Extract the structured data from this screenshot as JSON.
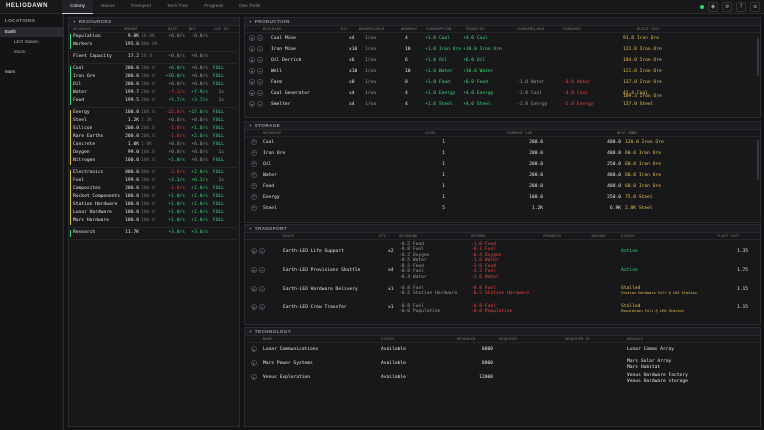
{
  "app": {
    "title": "HELIODAWN"
  },
  "nav": {
    "tabs": [
      "Colony",
      "Nexus",
      "Transport",
      "Tech Tree",
      "Progress",
      "Dev Tools"
    ]
  },
  "locations": {
    "heading": "LOCATIONS",
    "items": [
      {
        "label": "Earth",
        "selected": true,
        "sub": false
      },
      {
        "label": "LEO Station",
        "selected": false,
        "sub": true
      },
      {
        "label": "Moon",
        "selected": false,
        "sub": true
      },
      {
        "label": "Mars",
        "selected": false,
        "sub": false
      }
    ]
  },
  "resources": {
    "heading": "RESOURCES",
    "columns": [
      "RESOURCE",
      "AMOUNT",
      "RATE",
      "NET",
      "CAP IN"
    ],
    "groups": [
      {
        "accent": "#3ddc7a",
        "rows": [
          {
            "name": "Population",
            "amount": "9.8K",
            "cap": "10.0K",
            "rate": "+0.0/s",
            "net": "-0.0/s",
            "capin": ""
          },
          {
            "name": "Workers",
            "amount": "195.0",
            "cap": "800.0K",
            "rate": "",
            "net": "",
            "capin": ""
          }
        ]
      },
      {
        "accent": "",
        "rows": [
          {
            "name": "Fleet Capacity",
            "amount": "17.2",
            "cap": "50.0",
            "rate": "+0.0/s",
            "net": "+0.0/s",
            "capin": ""
          }
        ]
      },
      {
        "accent": "#3ddc7a",
        "rows": [
          {
            "name": "Coal",
            "amount": "200.0",
            "cap": "200.0",
            "rate": "+6.0/s",
            "net": "+0.0/s",
            "capin": "FULL"
          },
          {
            "name": "Iron Ore",
            "amount": "200.0",
            "cap": "200.0",
            "rate": "+10.0/s",
            "net": "+0.0/s",
            "capin": "FULL"
          },
          {
            "name": "Oil",
            "amount": "200.0",
            "cap": "200.0",
            "rate": "+0.0/s",
            "net": "+0.0/s",
            "capin": "FULL"
          },
          {
            "name": "Water",
            "amount": "199.7",
            "cap": "200.0",
            "rate": "-7.1/s",
            "net": "+7.9/s",
            "capin": "1s"
          },
          {
            "name": "Food",
            "amount": "199.5",
            "cap": "200.0",
            "rate": "+5.7/s",
            "net": "+3.7/s",
            "capin": "1s"
          }
        ]
      },
      {
        "accent": "#e6c24a",
        "rows": [
          {
            "name": "Energy",
            "amount": "100.0",
            "cap": "100.0",
            "rate": "-22.0/s",
            "net": "+17.0/s",
            "capin": "FULL"
          },
          {
            "name": "Steel",
            "amount": "1.2K",
            "cap": "1.2K",
            "rate": "+0.0/s",
            "net": "+0.0/s",
            "capin": "FULL"
          },
          {
            "name": "Silicon",
            "amount": "200.0",
            "cap": "200.0",
            "rate": "-1.0/s",
            "net": "+1.0/s",
            "capin": "FULL"
          },
          {
            "name": "Rare Earths",
            "amount": "200.0",
            "cap": "200.0",
            "rate": "-1.0/s",
            "net": "+2.0/s",
            "capin": "FULL"
          },
          {
            "name": "Concrete",
            "amount": "1.0K",
            "cap": "1.0K",
            "rate": "+0.0/s",
            "net": "+0.0/s",
            "capin": "FULL"
          },
          {
            "name": "Oxygen",
            "amount": "99.0",
            "cap": "100.0",
            "rate": "+0.0/s",
            "net": "+0.0/s",
            "capin": "1s"
          },
          {
            "name": "Nitrogen",
            "amount": "100.0",
            "cap": "100.0",
            "rate": "+1.0/s",
            "net": "+0.0/s",
            "capin": "FULL"
          }
        ]
      },
      {
        "accent": "#e6c24a",
        "rows": [
          {
            "name": "Electronics",
            "amount": "800.0",
            "cap": "800.0",
            "rate": "-2.0/s",
            "net": "+2.0/s",
            "capin": "FULL"
          },
          {
            "name": "Fuel",
            "amount": "199.0",
            "cap": "200.0",
            "rate": "+3.3/s",
            "net": "+0.3/s",
            "capin": "1s"
          },
          {
            "name": "Composites",
            "amount": "200.0",
            "cap": "200.0",
            "rate": "-1.0/s",
            "net": "+1.0/s",
            "capin": "FULL"
          },
          {
            "name": "Rocket Components",
            "amount": "100.0",
            "cap": "100.0",
            "rate": "+1.0/s",
            "net": "+1.0/s",
            "capin": "FULL"
          },
          {
            "name": "Station Hardware",
            "amount": "100.0",
            "cap": "100.0",
            "rate": "+1.0/s",
            "net": "+1.0/s",
            "capin": "FULL"
          },
          {
            "name": "Lunar Hardware",
            "amount": "100.0",
            "cap": "100.0",
            "rate": "+1.0/s",
            "net": "+1.0/s",
            "capin": "FULL"
          },
          {
            "name": "Mars Hardware",
            "amount": "100.0",
            "cap": "100.0",
            "rate": "+1.0/s",
            "net": "+1.0/s",
            "capin": "FULL"
          }
        ]
      },
      {
        "accent": "#3ddc7a",
        "rows": [
          {
            "name": "Research",
            "amount": "11.7K",
            "cap": "",
            "rate": "+3.0/s",
            "net": "+3.0/s",
            "capin": ""
          }
        ]
      }
    ]
  },
  "production": {
    "heading": "PRODUCTION",
    "columns": [
      "BUILDING",
      "QTY",
      "WORKERS/BLD",
      "WORKERS",
      "CONSUMPTION",
      "PRODUCES",
      "CONSUMES/BLD",
      "CONSUMES",
      "BUILD COST"
    ],
    "rows": [
      {
        "name": "Coal Mine",
        "qty": "x4",
        "rate": "1/ea",
        "workers": "4",
        "cons": "+1.0 Coal",
        "prod": "+4.0 Coal",
        "cb": "",
        "cs": "",
        "cost": "91.8 Iron Ore"
      },
      {
        "name": "Iron Mine",
        "qty": "x10",
        "rate": "1/ea",
        "workers": "10",
        "cons": "+1.0 Iron Ore",
        "prod": "+10.0 Iron Ore",
        "cb": "",
        "cs": "",
        "cost": "121.0 Iron Ore"
      },
      {
        "name": "Oil Derrick",
        "qty": "x6",
        "rate": "1/ea",
        "workers": "6",
        "cons": "+1.0 Oil",
        "prod": "+6.0 Oil",
        "cb": "",
        "cs": "",
        "cost": "104.0 Iron Ore"
      },
      {
        "name": "Well",
        "qty": "x10",
        "rate": "1/ea",
        "workers": "10",
        "cons": "+1.0 Water",
        "prod": "+10.0 Water",
        "cb": "",
        "cs": "",
        "cost": "121.0 Iron Ore"
      },
      {
        "name": "Farm",
        "qty": "x8",
        "rate": "1/ea",
        "workers": "8",
        "cons": "+1.0 Food",
        "prod": "+8.0 Food",
        "cb": "-1.0 Water",
        "cs": "-8.0 Water",
        "cost": "137.0 Iron Ore"
      },
      {
        "name": "Coal Generator",
        "qty": "x4",
        "rate": "1/ea",
        "workers": "4",
        "cons": "+1.0 Energy",
        "prod": "+4.0 Energy",
        "cb": "-1.0 Coal",
        "cs": "-4.0 Coal",
        "cost": "42.4 Coal"
      },
      {
        "name": "Smelter",
        "qty": "x4",
        "rate": "1/ea",
        "workers": "4",
        "cons": "+1.0 Steel",
        "prod": "+4.0 Steel",
        "cb": "-1.0 Energy",
        "cs": "-5.0 Energy",
        "cost": "137.0 Steel"
      }
    ],
    "extra_cost": "109.3 Iron Ore"
  },
  "storage": {
    "heading": "STORAGE",
    "columns": [
      "RESOURCE",
      "LEVEL",
      "CURRENT CAP",
      "NEXT CAP",
      "COST"
    ],
    "rows": [
      {
        "name": "Coal",
        "level": "1",
        "cur": "200.0",
        "next": "400.0",
        "cost": "120.0 Iron Ore"
      },
      {
        "name": "Iron Ore",
        "level": "1",
        "cur": "200.0",
        "next": "400.0",
        "cost": "60.0 Iron Ore"
      },
      {
        "name": "Oil",
        "level": "1",
        "cur": "200.0",
        "next": "250.0",
        "cost": "60.0 Iron Ore"
      },
      {
        "name": "Water",
        "level": "1",
        "cur": "200.0",
        "next": "400.0",
        "cost": "60.0 Iron Ore"
      },
      {
        "name": "Food",
        "level": "1",
        "cur": "200.0",
        "next": "400.0",
        "cost": "60.0 Iron Ore"
      },
      {
        "name": "Energy",
        "level": "1",
        "cur": "100.0",
        "next": "250.0",
        "cost": "75.0 Steel"
      },
      {
        "name": "Steel",
        "level": "5",
        "cur": "1.2K",
        "next": "6.9K",
        "cost": "2.8K Steel"
      }
    ]
  },
  "transport": {
    "heading": "TRANSPORT",
    "columns": [
      "ROUTE",
      "QTY",
      "OUTBOUND",
      "RETURN",
      "PROGRESS",
      "INFLOW",
      "STATUS",
      "FLEET COST"
    ],
    "rows": [
      {
        "name": "Earth-LEO Life Support",
        "qty": "x2",
        "out": [
          "-0.5 Food",
          "-0.8 Fuel",
          "-0.2 Oxygen",
          "-0.5 Water"
        ],
        "ret": [
          "-1.0 Food",
          "-0.1 Fuel",
          "-0.4 Oxygen",
          "-1.0 Water"
        ],
        "status": "Active",
        "status2": "",
        "fleet": "1.35"
      },
      {
        "name": "Earth-LEO Provisions Shuttle",
        "qty": "x4",
        "out": [
          "-0.5 Food",
          "-0.8 Fuel",
          "-0.4 Water"
        ],
        "ret": [
          "-2.0 Food",
          "-3.2 Fuel",
          "-1.6 Water"
        ],
        "status": "Active",
        "status2": "",
        "fleet": "1.75"
      },
      {
        "name": "Earth-LEO Hardware Delivery",
        "qty": "x1",
        "out": [
          "-0.8 Fuel",
          "-0.5 Station Hardware"
        ],
        "ret": [
          "-0.8 Fuel",
          "-0.5 Station Hardware"
        ],
        "status": "Stalled",
        "status2": "Station Hardware Full @ LEO Station",
        "fleet": "1.15"
      },
      {
        "name": "Earth-LEO Crew Transfer",
        "qty": "x1",
        "out": [
          "-0.8 Fuel",
          "-0.0 Population"
        ],
        "ret": [
          "-0.8 Fuel",
          "-0.0 Population"
        ],
        "status": "Stalled",
        "status2": "Population Full @ LEO Station",
        "fleet": "1.15"
      }
    ]
  },
  "technology": {
    "heading": "TECHNOLOGY",
    "columns": [
      "NAME",
      "STATUS",
      "RESEARCH",
      "REQUIRES",
      "REQUIRED BY",
      "UNLOCKS"
    ],
    "rows": [
      {
        "name": "Lunar Communications",
        "status": "Available",
        "research": "8000",
        "unlocks": [
          "Lunar Comms Array"
        ]
      },
      {
        "name": "Mars Power Systems",
        "status": "Available",
        "research": "8000",
        "unlocks": [
          "Mars Solar Array",
          "Mars Habitat"
        ]
      },
      {
        "name": "Venus Exploration",
        "status": "Available",
        "research": "12000",
        "unlocks": [
          "Venus Hardware Factory",
          "Venus Hardware storage"
        ]
      }
    ]
  }
}
